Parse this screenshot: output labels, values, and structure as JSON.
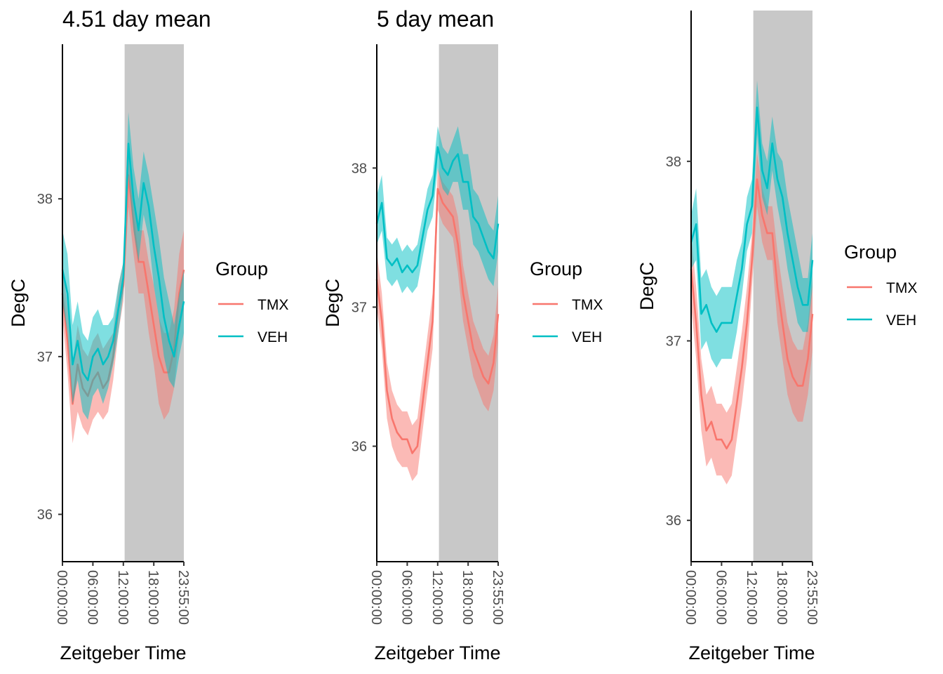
{
  "chart_data": [
    {
      "type": "line",
      "title": "4.51 day mean",
      "xlabel": "Zeitgeber Time",
      "ylabel": "DegC",
      "x_ticks": [
        "00:00:00",
        "06:00:00",
        "12:00:00",
        "18:00:00",
        "23:55:00"
      ],
      "x_tick_hours": [
        0,
        6,
        12,
        18,
        23.917
      ],
      "xlim_hours": [
        0,
        23.917
      ],
      "ylim": [
        35.7,
        38.98
      ],
      "y_ticks": [
        36,
        37,
        38
      ],
      "dark_phase_hours": [
        12.25,
        23.917
      ],
      "dark_phase_color": "#c8c8c8",
      "legend": {
        "title": "Group",
        "placement": "right",
        "entries": [
          "TMX",
          "VEH"
        ]
      },
      "x_hours": [
        0,
        1,
        2,
        3,
        4,
        5,
        6,
        7,
        8,
        9,
        10,
        11,
        12,
        13,
        14,
        15,
        16,
        17,
        18,
        19,
        20,
        21,
        22,
        23,
        23.917
      ],
      "series": [
        {
          "name": "TMX",
          "color": "#F8766D",
          "values": [
            37.4,
            37.1,
            36.7,
            36.95,
            36.8,
            36.75,
            36.85,
            36.9,
            36.8,
            36.85,
            37.0,
            37.3,
            37.45,
            38.15,
            37.85,
            37.6,
            37.6,
            37.4,
            37.2,
            37.0,
            36.9,
            36.9,
            37.05,
            37.4,
            37.55
          ],
          "lower": [
            37.25,
            36.9,
            36.45,
            36.65,
            36.55,
            36.5,
            36.6,
            36.65,
            36.6,
            36.65,
            36.85,
            37.15,
            37.35,
            37.95,
            37.65,
            37.4,
            37.4,
            37.15,
            36.95,
            36.7,
            36.6,
            36.65,
            36.8,
            37.15,
            37.3
          ],
          "upper": [
            37.6,
            37.3,
            36.95,
            37.2,
            37.05,
            37.0,
            37.1,
            37.15,
            37.05,
            37.1,
            37.15,
            37.45,
            37.6,
            38.35,
            38.05,
            37.8,
            37.8,
            37.6,
            37.45,
            37.25,
            37.15,
            37.15,
            37.3,
            37.65,
            37.8
          ]
        },
        {
          "name": "VEH",
          "color": "#00BFC4",
          "values": [
            37.55,
            37.4,
            36.95,
            37.1,
            36.9,
            36.85,
            37.0,
            37.05,
            36.95,
            37.0,
            37.1,
            37.3,
            37.5,
            38.35,
            38.0,
            37.8,
            38.1,
            37.95,
            37.7,
            37.5,
            37.25,
            37.1,
            37.0,
            37.2,
            37.35
          ],
          "lower": [
            37.35,
            37.15,
            36.7,
            36.85,
            36.65,
            36.6,
            36.75,
            36.8,
            36.7,
            36.8,
            36.95,
            37.15,
            37.4,
            38.15,
            37.8,
            37.6,
            37.9,
            37.75,
            37.45,
            37.25,
            37.0,
            36.85,
            36.8,
            37.0,
            37.15
          ],
          "upper": [
            37.8,
            37.65,
            37.2,
            37.35,
            37.15,
            37.1,
            37.25,
            37.3,
            37.2,
            37.2,
            37.25,
            37.45,
            37.6,
            38.55,
            38.2,
            38.0,
            38.3,
            38.15,
            37.95,
            37.75,
            37.5,
            37.35,
            37.2,
            37.4,
            37.55
          ]
        }
      ]
    },
    {
      "type": "line",
      "title": "5 day mean",
      "xlabel": "Zeitgeber Time",
      "ylabel": "DegC",
      "x_ticks": [
        "00:00:00",
        "06:00:00",
        "12:00:00",
        "18:00:00",
        "23:55:00"
      ],
      "x_tick_hours": [
        0,
        6,
        12,
        18,
        23.917
      ],
      "xlim_hours": [
        0,
        23.917
      ],
      "ylim": [
        35.17,
        38.89
      ],
      "y_ticks": [
        36,
        37,
        38
      ],
      "dark_phase_hours": [
        12.25,
        23.917
      ],
      "dark_phase_color": "#c8c8c8",
      "legend": {
        "title": "Group",
        "placement": "right",
        "entries": [
          "TMX",
          "VEH"
        ]
      },
      "x_hours": [
        0,
        1,
        2,
        3,
        4,
        5,
        6,
        7,
        8,
        9,
        10,
        11,
        12,
        13,
        14,
        15,
        16,
        17,
        18,
        19,
        20,
        21,
        22,
        23,
        23.917
      ],
      "series": [
        {
          "name": "TMX",
          "color": "#F8766D",
          "values": [
            37.2,
            36.9,
            36.4,
            36.2,
            36.1,
            36.05,
            36.05,
            35.95,
            36.0,
            36.3,
            36.6,
            36.9,
            37.85,
            37.75,
            37.7,
            37.65,
            37.45,
            37.1,
            36.9,
            36.7,
            36.6,
            36.5,
            36.45,
            36.6,
            36.95
          ],
          "lower": [
            37.0,
            36.7,
            36.2,
            36.0,
            35.9,
            35.85,
            35.85,
            35.75,
            35.8,
            36.1,
            36.4,
            36.7,
            37.7,
            37.6,
            37.55,
            37.5,
            37.25,
            36.9,
            36.7,
            36.5,
            36.4,
            36.3,
            36.25,
            36.4,
            36.75
          ],
          "upper": [
            37.4,
            37.1,
            36.6,
            36.4,
            36.3,
            36.25,
            36.25,
            36.15,
            36.2,
            36.5,
            36.8,
            37.1,
            38.0,
            37.9,
            37.85,
            37.8,
            37.65,
            37.3,
            37.1,
            36.9,
            36.8,
            36.7,
            36.65,
            36.8,
            37.15
          ]
        },
        {
          "name": "VEH",
          "color": "#00BFC4",
          "values": [
            37.6,
            37.75,
            37.35,
            37.3,
            37.35,
            37.25,
            37.3,
            37.25,
            37.3,
            37.5,
            37.7,
            37.8,
            38.15,
            38.0,
            37.95,
            38.05,
            38.1,
            37.9,
            37.9,
            37.65,
            37.6,
            37.5,
            37.4,
            37.35,
            37.6
          ],
          "lower": [
            37.45,
            37.55,
            37.2,
            37.15,
            37.2,
            37.1,
            37.15,
            37.1,
            37.15,
            37.35,
            37.55,
            37.65,
            38.0,
            37.85,
            37.8,
            37.9,
            37.9,
            37.7,
            37.7,
            37.45,
            37.4,
            37.3,
            37.2,
            37.15,
            37.4
          ],
          "upper": [
            37.8,
            37.95,
            37.5,
            37.45,
            37.5,
            37.4,
            37.45,
            37.4,
            37.45,
            37.65,
            37.85,
            37.95,
            38.3,
            38.15,
            38.1,
            38.2,
            38.3,
            38.1,
            38.1,
            37.85,
            37.8,
            37.7,
            37.6,
            37.55,
            37.8
          ]
        }
      ]
    },
    {
      "type": "line",
      "title": "",
      "xlabel": "Zeitgeber Time",
      "ylabel": "DegC",
      "x_ticks": [
        "00:00:00",
        "06:00:00",
        "12:00:00",
        "18:00:00",
        "23:55:00"
      ],
      "x_tick_hours": [
        0,
        6,
        12,
        18,
        23.917
      ],
      "xlim_hours": [
        0,
        23.917
      ],
      "ylim": [
        35.77,
        38.84
      ],
      "y_ticks": [
        36,
        37,
        38
      ],
      "dark_phase_hours": [
        12.25,
        23.917
      ],
      "dark_phase_color": "#c8c8c8",
      "legend": {
        "title": "Group",
        "placement": "right",
        "entries": [
          "TMX",
          "VEH"
        ]
      },
      "x_hours": [
        0,
        1,
        2,
        3,
        4,
        5,
        6,
        7,
        8,
        9,
        10,
        11,
        12,
        13,
        14,
        15,
        16,
        17,
        18,
        19,
        20,
        21,
        22,
        23,
        23.917
      ],
      "series": [
        {
          "name": "TMX",
          "color": "#F8766D",
          "values": [
            37.4,
            37.1,
            36.7,
            36.5,
            36.55,
            36.45,
            36.45,
            36.4,
            36.45,
            36.65,
            36.85,
            37.1,
            37.45,
            37.9,
            37.7,
            37.6,
            37.6,
            37.3,
            37.1,
            36.9,
            36.8,
            36.75,
            36.75,
            36.9,
            37.15
          ],
          "lower": [
            37.2,
            36.9,
            36.5,
            36.3,
            36.35,
            36.25,
            36.25,
            36.2,
            36.25,
            36.45,
            36.65,
            36.9,
            37.3,
            37.75,
            37.55,
            37.45,
            37.45,
            37.1,
            36.9,
            36.7,
            36.6,
            36.55,
            36.55,
            36.7,
            36.95
          ],
          "upper": [
            37.6,
            37.3,
            36.9,
            36.7,
            36.75,
            36.65,
            36.65,
            36.6,
            36.65,
            36.85,
            37.05,
            37.3,
            37.6,
            38.05,
            37.85,
            37.75,
            37.75,
            37.5,
            37.3,
            37.1,
            37.0,
            36.95,
            36.95,
            37.1,
            37.35
          ]
        },
        {
          "name": "VEH",
          "color": "#00BFC4",
          "values": [
            37.55,
            37.65,
            37.15,
            37.2,
            37.1,
            37.05,
            37.1,
            37.1,
            37.1,
            37.25,
            37.4,
            37.65,
            37.75,
            38.3,
            37.95,
            37.85,
            38.1,
            37.9,
            37.8,
            37.6,
            37.45,
            37.3,
            37.2,
            37.2,
            37.45
          ],
          "lower": [
            37.4,
            37.45,
            36.95,
            37.0,
            36.9,
            36.85,
            36.9,
            36.9,
            36.9,
            37.05,
            37.25,
            37.5,
            37.6,
            38.15,
            37.8,
            37.7,
            37.95,
            37.75,
            37.6,
            37.4,
            37.25,
            37.1,
            37.05,
            37.05,
            37.3
          ],
          "upper": [
            37.7,
            37.85,
            37.35,
            37.4,
            37.3,
            37.25,
            37.3,
            37.3,
            37.3,
            37.45,
            37.55,
            37.8,
            37.9,
            38.45,
            38.1,
            38.0,
            38.25,
            38.05,
            38.0,
            37.8,
            37.65,
            37.5,
            37.35,
            37.35,
            37.6
          ]
        }
      ]
    }
  ]
}
